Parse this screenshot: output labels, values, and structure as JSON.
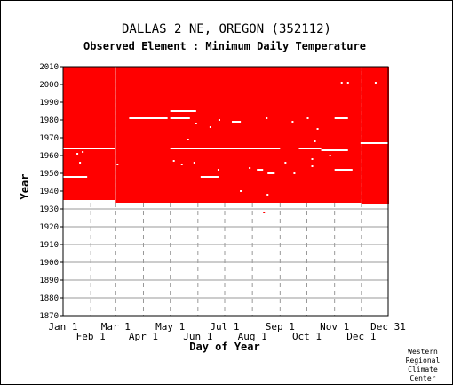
{
  "title": "DALLAS 2 NE, OREGON   (352112)",
  "subtitle": "Observed Element : Minimum Daily Temperature",
  "credit": [
    "Western",
    "Regional",
    "Climate",
    "Center"
  ],
  "colors": {
    "data": "#ff0000",
    "grid": "#999999",
    "frame": "#000000"
  },
  "chart_data": {
    "type": "scatter",
    "description_type": "data availability (day of year vs year)",
    "xlabel": "Day of Year",
    "ylabel": "Year",
    "xlim": [
      1,
      365
    ],
    "ylim": [
      1870,
      2010
    ],
    "yticks": [
      1870,
      1880,
      1890,
      1900,
      1910,
      1920,
      1930,
      1940,
      1950,
      1960,
      1970,
      1980,
      1990,
      2000,
      2010
    ],
    "xticks_top": [
      {
        "label": "Jan 1",
        "day": 1
      },
      {
        "label": "Mar 1",
        "day": 60
      },
      {
        "label": "May 1",
        "day": 121
      },
      {
        "label": "Jul 1",
        "day": 182
      },
      {
        "label": "Sep 1",
        "day": 244
      },
      {
        "label": "Nov 1",
        "day": 305
      },
      {
        "label": "Dec 31",
        "day": 365
      }
    ],
    "xticks_bottom": [
      {
        "label": "Feb 1",
        "day": 32
      },
      {
        "label": "Apr 1",
        "day": 91
      },
      {
        "label": "Jun 1",
        "day": 152
      },
      {
        "label": "Aug 1",
        "day": 213
      },
      {
        "label": "Oct 1",
        "day": 274
      },
      {
        "label": "Dec 1",
        "day": 335
      }
    ],
    "observed_periods": [
      {
        "start_day": 1,
        "end_day": 59,
        "start_year": 1935,
        "end_year": 2010
      },
      {
        "start_day": 60,
        "end_day": 334,
        "start_year": 1933.5,
        "end_year": 2010
      },
      {
        "start_day": 335,
        "end_day": 365,
        "start_year": 1933,
        "end_year": 2010
      }
    ],
    "missing_segments": [
      {
        "year": 1964,
        "start_day": 1,
        "end_day": 59
      },
      {
        "year": 1948,
        "start_day": 1,
        "end_day": 28
      },
      {
        "year": 1985,
        "start_day": 121,
        "end_day": 150
      },
      {
        "year": 1981,
        "start_day": 75,
        "end_day": 118
      },
      {
        "year": 1981,
        "start_day": 121,
        "end_day": 143
      },
      {
        "year": 1964,
        "start_day": 121,
        "end_day": 244
      },
      {
        "year": 1948,
        "start_day": 155,
        "end_day": 175
      },
      {
        "year": 1964,
        "start_day": 265,
        "end_day": 290
      },
      {
        "year": 1963,
        "start_day": 290,
        "end_day": 320
      },
      {
        "year": 1981,
        "start_day": 305,
        "end_day": 320
      },
      {
        "year": 1967,
        "start_day": 334,
        "end_day": 365
      },
      {
        "year": 1952,
        "start_day": 305,
        "end_day": 325
      },
      {
        "year": 1979,
        "start_day": 190,
        "end_day": 200
      },
      {
        "year": 1952,
        "start_day": 218,
        "end_day": 225
      },
      {
        "year": 1950,
        "start_day": 230,
        "end_day": 238
      }
    ],
    "missing_points": [
      {
        "year": 1981,
        "day": 229
      },
      {
        "year": 1981,
        "day": 275
      },
      {
        "year": 1979,
        "day": 258
      },
      {
        "year": 1980,
        "day": 176
      },
      {
        "year": 1978,
        "day": 150
      },
      {
        "year": 1976,
        "day": 166
      },
      {
        "year": 1969,
        "day": 141
      },
      {
        "year": 1961,
        "day": 17
      },
      {
        "year": 1956,
        "day": 20
      },
      {
        "year": 1955,
        "day": 62
      },
      {
        "year": 1957,
        "day": 125
      },
      {
        "year": 1955,
        "day": 134
      },
      {
        "year": 1956,
        "day": 148
      },
      {
        "year": 1953,
        "day": 210
      },
      {
        "year": 1956,
        "day": 250
      },
      {
        "year": 1958,
        "day": 280
      },
      {
        "year": 1960,
        "day": 300
      },
      {
        "year": 1940,
        "day": 200
      },
      {
        "year": 1938,
        "day": 230
      },
      {
        "year": 2001,
        "day": 313
      },
      {
        "year": 2001,
        "day": 320
      },
      {
        "year": 2001,
        "day": 351
      },
      {
        "year": 1968,
        "day": 283
      },
      {
        "year": 1975,
        "day": 286
      },
      {
        "year": 1962,
        "day": 23
      },
      {
        "year": 1952,
        "day": 175
      },
      {
        "year": 1950,
        "day": 260
      },
      {
        "year": 1954,
        "day": 280
      }
    ],
    "outlier_points": [
      {
        "year": 1928,
        "day": 226
      }
    ]
  }
}
